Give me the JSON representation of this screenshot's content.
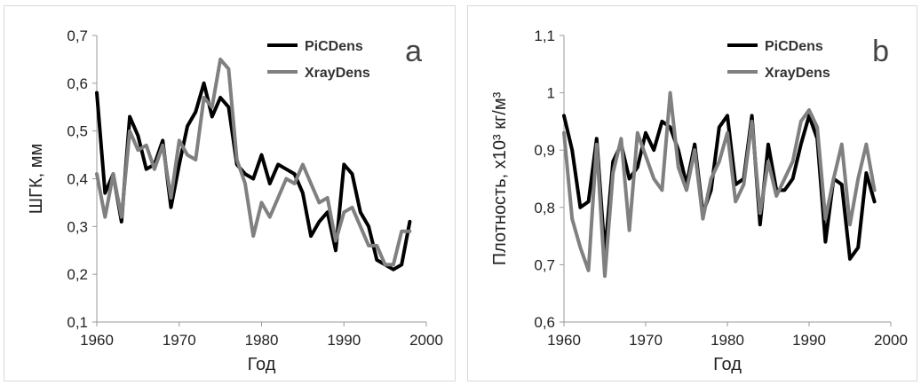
{
  "chart_data": [
    {
      "type": "line",
      "panel_letter": "a",
      "xlabel": "Год",
      "ylabel": "ШГК, мм",
      "xlim": [
        1960,
        2000
      ],
      "ylim": [
        0.1,
        0.7
      ],
      "xticks": [
        1960,
        1970,
        1980,
        1990,
        2000
      ],
      "xtick_labels": [
        "1960",
        "1970",
        "1980",
        "1990",
        "2000"
      ],
      "yticks": [
        0.1,
        0.2,
        0.3,
        0.4,
        0.5,
        0.6,
        0.7
      ],
      "ytick_labels": [
        "0,1",
        "0,2",
        "0,3",
        "0,4",
        "0,5",
        "0,6",
        "0,7"
      ],
      "legend_position": "top-right",
      "grid": false,
      "series": [
        {
          "name": "PiCDens",
          "color": "#000000",
          "x": [
            1960,
            1961,
            1962,
            1963,
            1964,
            1965,
            1966,
            1967,
            1968,
            1969,
            1970,
            1971,
            1972,
            1973,
            1974,
            1975,
            1976,
            1977,
            1978,
            1979,
            1980,
            1981,
            1982,
            1983,
            1984,
            1985,
            1986,
            1987,
            1988,
            1989,
            1990,
            1991,
            1992,
            1993,
            1994,
            1995,
            1996,
            1997,
            1998
          ],
          "y": [
            0.58,
            0.37,
            0.41,
            0.31,
            0.53,
            0.49,
            0.42,
            0.43,
            0.48,
            0.34,
            0.43,
            0.51,
            0.54,
            0.6,
            0.53,
            0.57,
            0.55,
            0.43,
            0.41,
            0.4,
            0.45,
            0.39,
            0.43,
            0.42,
            0.41,
            0.37,
            0.28,
            0.31,
            0.33,
            0.25,
            0.43,
            0.41,
            0.33,
            0.3,
            0.23,
            0.22,
            0.21,
            0.22,
            0.31
          ]
        },
        {
          "name": "XrayDens",
          "color": "#808080",
          "x": [
            1960,
            1961,
            1962,
            1963,
            1964,
            1965,
            1966,
            1967,
            1968,
            1969,
            1970,
            1971,
            1972,
            1973,
            1974,
            1975,
            1976,
            1977,
            1978,
            1979,
            1980,
            1981,
            1982,
            1983,
            1984,
            1985,
            1986,
            1987,
            1988,
            1989,
            1990,
            1991,
            1992,
            1993,
            1994,
            1995,
            1996,
            1997,
            1998
          ],
          "y": [
            0.41,
            0.32,
            0.41,
            0.32,
            0.5,
            0.46,
            0.47,
            0.42,
            0.47,
            0.36,
            0.48,
            0.45,
            0.44,
            0.57,
            0.55,
            0.65,
            0.63,
            0.44,
            0.39,
            0.28,
            0.35,
            0.32,
            0.36,
            0.4,
            0.39,
            0.43,
            0.39,
            0.35,
            0.36,
            0.27,
            0.33,
            0.34,
            0.3,
            0.26,
            0.26,
            0.22,
            0.22,
            0.29,
            0.29
          ]
        }
      ]
    },
    {
      "type": "line",
      "panel_letter": "b",
      "xlabel": "Год",
      "ylabel": "Плотность, x10³ кг/м³",
      "xlim": [
        1960,
        2000
      ],
      "ylim": [
        0.6,
        1.1
      ],
      "xticks": [
        1960,
        1970,
        1980,
        1990,
        2000
      ],
      "xtick_labels": [
        "1960",
        "1970",
        "1980",
        "1990",
        "2000"
      ],
      "yticks": [
        0.6,
        0.7,
        0.8,
        0.9,
        1.0,
        1.1
      ],
      "ytick_labels": [
        "0,6",
        "0,7",
        "0,8",
        "0,9",
        "1",
        "1,1"
      ],
      "legend_position": "top-right",
      "grid": false,
      "series": [
        {
          "name": "PiCDens",
          "color": "#000000",
          "x": [
            1960,
            1961,
            1962,
            1963,
            1964,
            1965,
            1966,
            1967,
            1968,
            1969,
            1970,
            1971,
            1972,
            1973,
            1974,
            1975,
            1976,
            1977,
            1978,
            1979,
            1980,
            1981,
            1982,
            1983,
            1984,
            1985,
            1986,
            1987,
            1988,
            1989,
            1990,
            1991,
            1992,
            1993,
            1994,
            1995,
            1996,
            1997,
            1998
          ],
          "y": [
            0.96,
            0.9,
            0.8,
            0.81,
            0.92,
            0.72,
            0.88,
            0.91,
            0.85,
            0.87,
            0.93,
            0.9,
            0.95,
            0.94,
            0.9,
            0.84,
            0.91,
            0.79,
            0.83,
            0.94,
            0.96,
            0.84,
            0.85,
            0.96,
            0.77,
            0.91,
            0.83,
            0.83,
            0.85,
            0.91,
            0.96,
            0.92,
            0.74,
            0.85,
            0.84,
            0.71,
            0.73,
            0.86,
            0.81
          ]
        },
        {
          "name": "XrayDens",
          "color": "#808080",
          "x": [
            1960,
            1961,
            1962,
            1963,
            1964,
            1965,
            1966,
            1967,
            1968,
            1969,
            1970,
            1971,
            1972,
            1973,
            1974,
            1975,
            1976,
            1977,
            1978,
            1979,
            1980,
            1981,
            1982,
            1983,
            1984,
            1985,
            1986,
            1987,
            1988,
            1989,
            1990,
            1991,
            1992,
            1993,
            1994,
            1995,
            1996,
            1997,
            1998
          ],
          "y": [
            0.93,
            0.78,
            0.73,
            0.69,
            0.91,
            0.68,
            0.86,
            0.92,
            0.76,
            0.93,
            0.89,
            0.85,
            0.83,
            1.0,
            0.87,
            0.83,
            0.9,
            0.78,
            0.85,
            0.88,
            0.93,
            0.81,
            0.84,
            0.95,
            0.79,
            0.88,
            0.82,
            0.85,
            0.88,
            0.95,
            0.97,
            0.94,
            0.78,
            0.85,
            0.91,
            0.77,
            0.85,
            0.91,
            0.83
          ]
        }
      ]
    }
  ]
}
